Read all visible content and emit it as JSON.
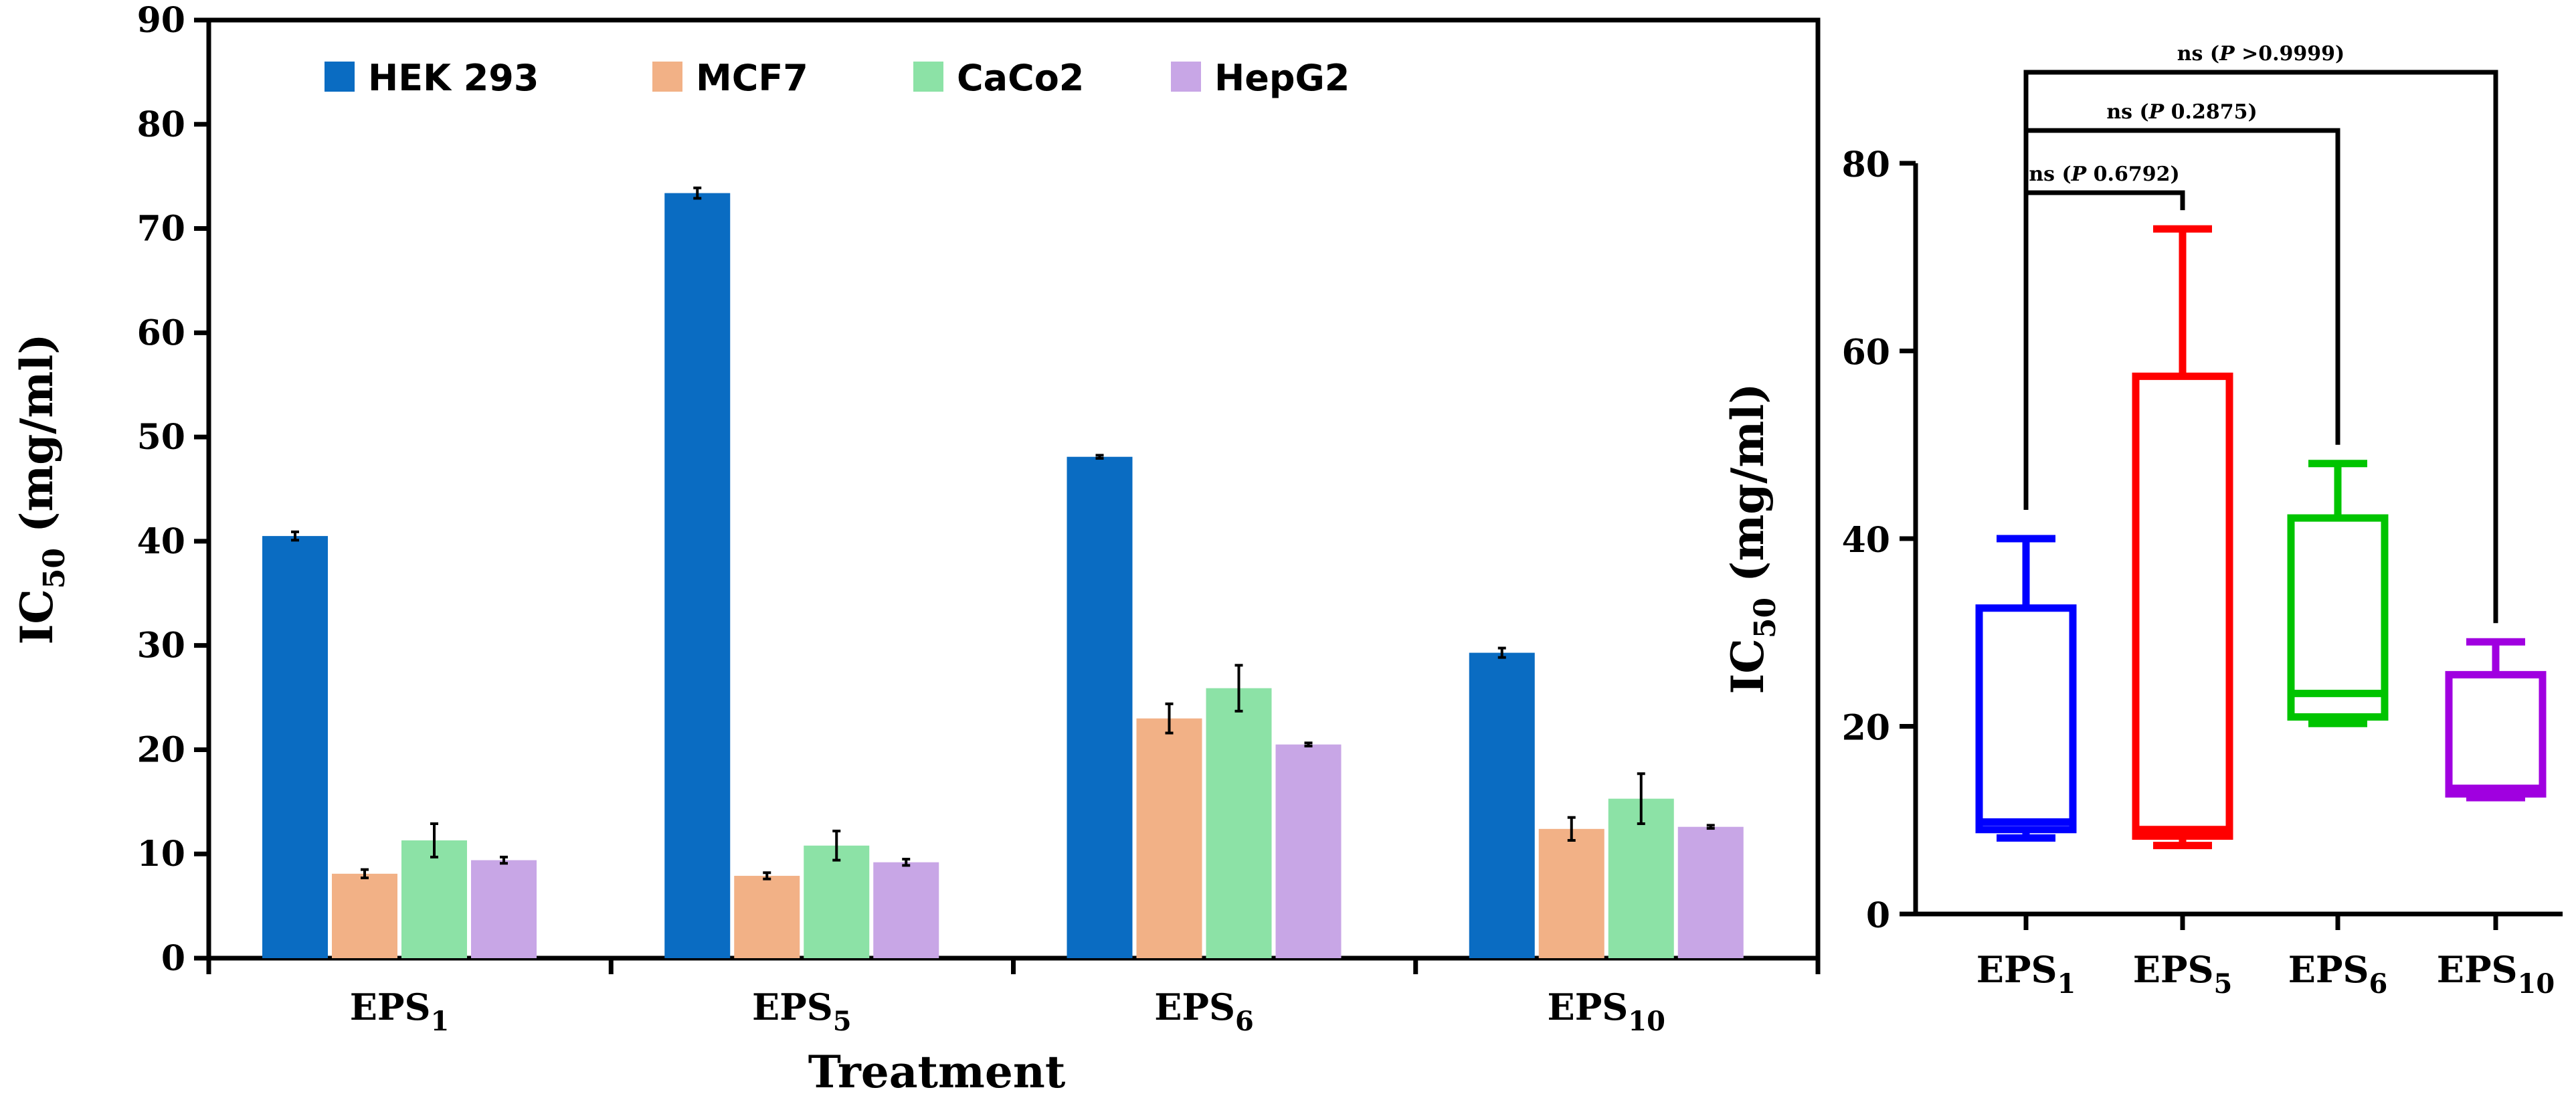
{
  "chart_data": [
    {
      "type": "bar",
      "title": "",
      "xlabel": "Treatment",
      "ylabel_main": "IC",
      "ylabel_sub": "50",
      "ylabel_unit": " (mg/ml)",
      "ylim": [
        0,
        90
      ],
      "yticks": [
        0,
        10,
        20,
        30,
        40,
        50,
        60,
        70,
        80,
        90
      ],
      "categories": [
        {
          "main": "EPS",
          "sub": "1"
        },
        {
          "main": "EPS",
          "sub": "5"
        },
        {
          "main": "EPS",
          "sub": "6"
        },
        {
          "main": "EPS",
          "sub": "10"
        }
      ],
      "legend_position": "top",
      "series": [
        {
          "name": "HEK 293",
          "color": "#0a6cc2",
          "values": [
            40.5,
            73.4,
            48.1,
            29.3
          ],
          "errors": [
            0.4,
            0.5,
            0.15,
            0.45
          ]
        },
        {
          "name": "MCF7",
          "color": "#f2b186",
          "values": [
            8.1,
            7.9,
            23.0,
            12.4
          ],
          "errors": [
            0.4,
            0.3,
            1.4,
            1.1
          ]
        },
        {
          "name": "CaCo2",
          "color": "#8ce2a6",
          "values": [
            11.3,
            10.8,
            25.9,
            15.3
          ],
          "errors": [
            1.6,
            1.4,
            2.2,
            2.4
          ]
        },
        {
          "name": "HepG2",
          "color": "#c8a6e6",
          "values": [
            9.4,
            9.2,
            20.5,
            12.6
          ],
          "errors": [
            0.3,
            0.3,
            0.15,
            0.15
          ]
        }
      ]
    },
    {
      "type": "box",
      "title": "",
      "xlabel": "",
      "ylabel_main": "IC",
      "ylabel_sub": "50",
      "ylabel_unit": " (mg/ml)",
      "ylim": [
        0,
        80
      ],
      "yticks": [
        0,
        20,
        40,
        60,
        80
      ],
      "boxes": [
        {
          "main": "EPS",
          "sub": "1",
          "color": "#0000ff",
          "min": 8.1,
          "q1": 9.0,
          "median": 9.8,
          "q3": 32.6,
          "max": 40.0
        },
        {
          "main": "EPS",
          "sub": "5",
          "color": "#ff0000",
          "min": 7.3,
          "q1": 8.3,
          "median": 9.0,
          "q3": 57.3,
          "max": 73.0
        },
        {
          "main": "EPS",
          "sub": "6",
          "color": "#00c400",
          "min": 20.3,
          "q1": 21.0,
          "median": 23.5,
          "q3": 42.2,
          "max": 48.0
        },
        {
          "main": "EPS",
          "sub": "10",
          "color": "#a000e0",
          "min": 12.4,
          "q1": 12.8,
          "median": 13.4,
          "q3": 25.5,
          "max": 29.0
        }
      ],
      "comparisons": [
        {
          "from": 0,
          "to": 1,
          "label_prefix": "ns (",
          "label_italic": "P",
          "label_value": " 0.6792)"
        },
        {
          "from": 0,
          "to": 2,
          "label_prefix": "ns (",
          "label_italic": "P",
          "label_value": " 0.2875)"
        },
        {
          "from": 0,
          "to": 3,
          "label_prefix": "ns (",
          "label_italic": "P",
          "label_value": " >0.9999)"
        }
      ]
    }
  ]
}
